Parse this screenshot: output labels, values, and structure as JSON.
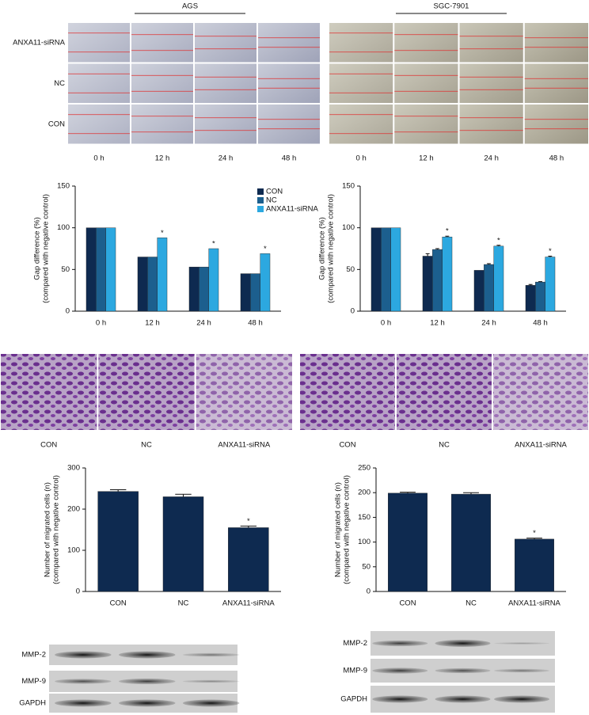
{
  "wound_panels": [
    {
      "title": "AGS",
      "rows": [
        "ANXA11-siRNA",
        "NC",
        "CON"
      ],
      "times": [
        "0 h",
        "12 h",
        "24 h",
        "48 h"
      ]
    },
    {
      "title": "SGC-7901",
      "times": [
        "0 h",
        "12 h",
        "24 h",
        "48 h"
      ]
    }
  ],
  "chart_data": [
    {
      "type": "bar",
      "ylabel": [
        "Gap difference (%)",
        "(compared with negative control)"
      ],
      "categories": [
        "0 h",
        "12 h",
        "24 h",
        "48 h"
      ],
      "series": [
        {
          "name": "CON",
          "color": "#0e2a50",
          "values": [
            100,
            65,
            53,
            45
          ]
        },
        {
          "name": "NC",
          "color": "#1c5f8e",
          "values": [
            100,
            65,
            53,
            45
          ]
        },
        {
          "name": "ANXA11-siRNA",
          "color": "#2ca8e0",
          "values": [
            100,
            88,
            75,
            69
          ],
          "significance": [
            null,
            "*",
            "*",
            "*"
          ]
        }
      ],
      "ylim": [
        0,
        150
      ],
      "yticks": [
        0,
        50,
        100,
        150
      ],
      "legend": "upper right"
    },
    {
      "type": "bar",
      "ylabel": [
        "Gap difference (%)",
        "(compared with negative control)"
      ],
      "categories": [
        "0 h",
        "12 h",
        "24 h",
        "48 h"
      ],
      "series": [
        {
          "name": "CON",
          "color": "#0e2a50",
          "values": [
            100,
            66,
            49,
            31
          ],
          "errors": [
            0,
            3,
            0,
            1
          ]
        },
        {
          "name": "NC",
          "color": "#1c5f8e",
          "values": [
            100,
            74,
            56,
            35
          ],
          "errors": [
            0,
            1,
            1,
            0.5
          ]
        },
        {
          "name": "ANXA11-siRNA",
          "color": "#2ca8e0",
          "values": [
            100,
            89,
            78,
            65
          ],
          "errors": [
            0,
            1,
            1,
            1
          ],
          "significance": [
            null,
            "*",
            "*",
            "*"
          ]
        }
      ],
      "ylim": [
        0,
        150
      ],
      "yticks": [
        0,
        50,
        100,
        150
      ],
      "show_legend": false
    },
    {
      "type": "bar",
      "ylabel": [
        "Number of migrated cells (n)",
        "(compared with negative control)"
      ],
      "categories": [
        "CON",
        "NC",
        "ANXA11-siRNA"
      ],
      "values": [
        243,
        230,
        155
      ],
      "errors": [
        4,
        6,
        4
      ],
      "significance": [
        null,
        null,
        "*"
      ],
      "color": "#0e2a50",
      "ylim": [
        0,
        300
      ],
      "yticks": [
        0,
        100,
        200,
        300
      ]
    },
    {
      "type": "bar",
      "ylabel": [
        "Number of migrated cells (n)",
        "(compared with negative control)"
      ],
      "categories": [
        "CON",
        "NC",
        "ANXA11-siRNA"
      ],
      "values": [
        199,
        197,
        106
      ],
      "errors": [
        2,
        3,
        2
      ],
      "significance": [
        null,
        null,
        "*"
      ],
      "color": "#0e2a50",
      "ylim": [
        0,
        250
      ],
      "yticks": [
        0,
        50,
        100,
        150,
        200,
        250
      ]
    }
  ],
  "transwell_labels": [
    [
      "CON",
      "NC",
      "ANXA11-siRNA"
    ],
    [
      "CON",
      "NC",
      "ANXA11-siRNA"
    ]
  ],
  "blots": [
    [
      "MMP-2",
      "MMP-9",
      "GAPDH"
    ],
    [
      "MMP-2",
      "MMP-9",
      "GAPDH"
    ]
  ]
}
